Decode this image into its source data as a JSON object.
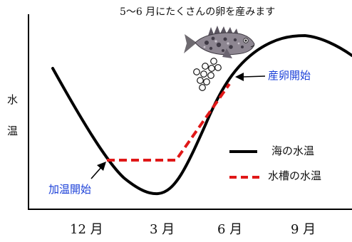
{
  "diagram": {
    "title": "5〜6 月にたくさんの卵を産みます",
    "y_label_chars": [
      "水",
      "温"
    ],
    "x_ticks": [
      "12 月",
      "3 月",
      "6 月",
      "9 月"
    ],
    "annotations": {
      "heating_start": "加温開始",
      "spawning_start": "産卵開始"
    },
    "legend": {
      "sea": "海の水温",
      "tank": "水槽の水温"
    },
    "colors": {
      "sea_line": "#000000",
      "tank_line": "#e01818",
      "annotation_text": "#1a3fd8"
    },
    "icons": [
      "fish-illustration",
      "egg-bubbles"
    ]
  }
}
